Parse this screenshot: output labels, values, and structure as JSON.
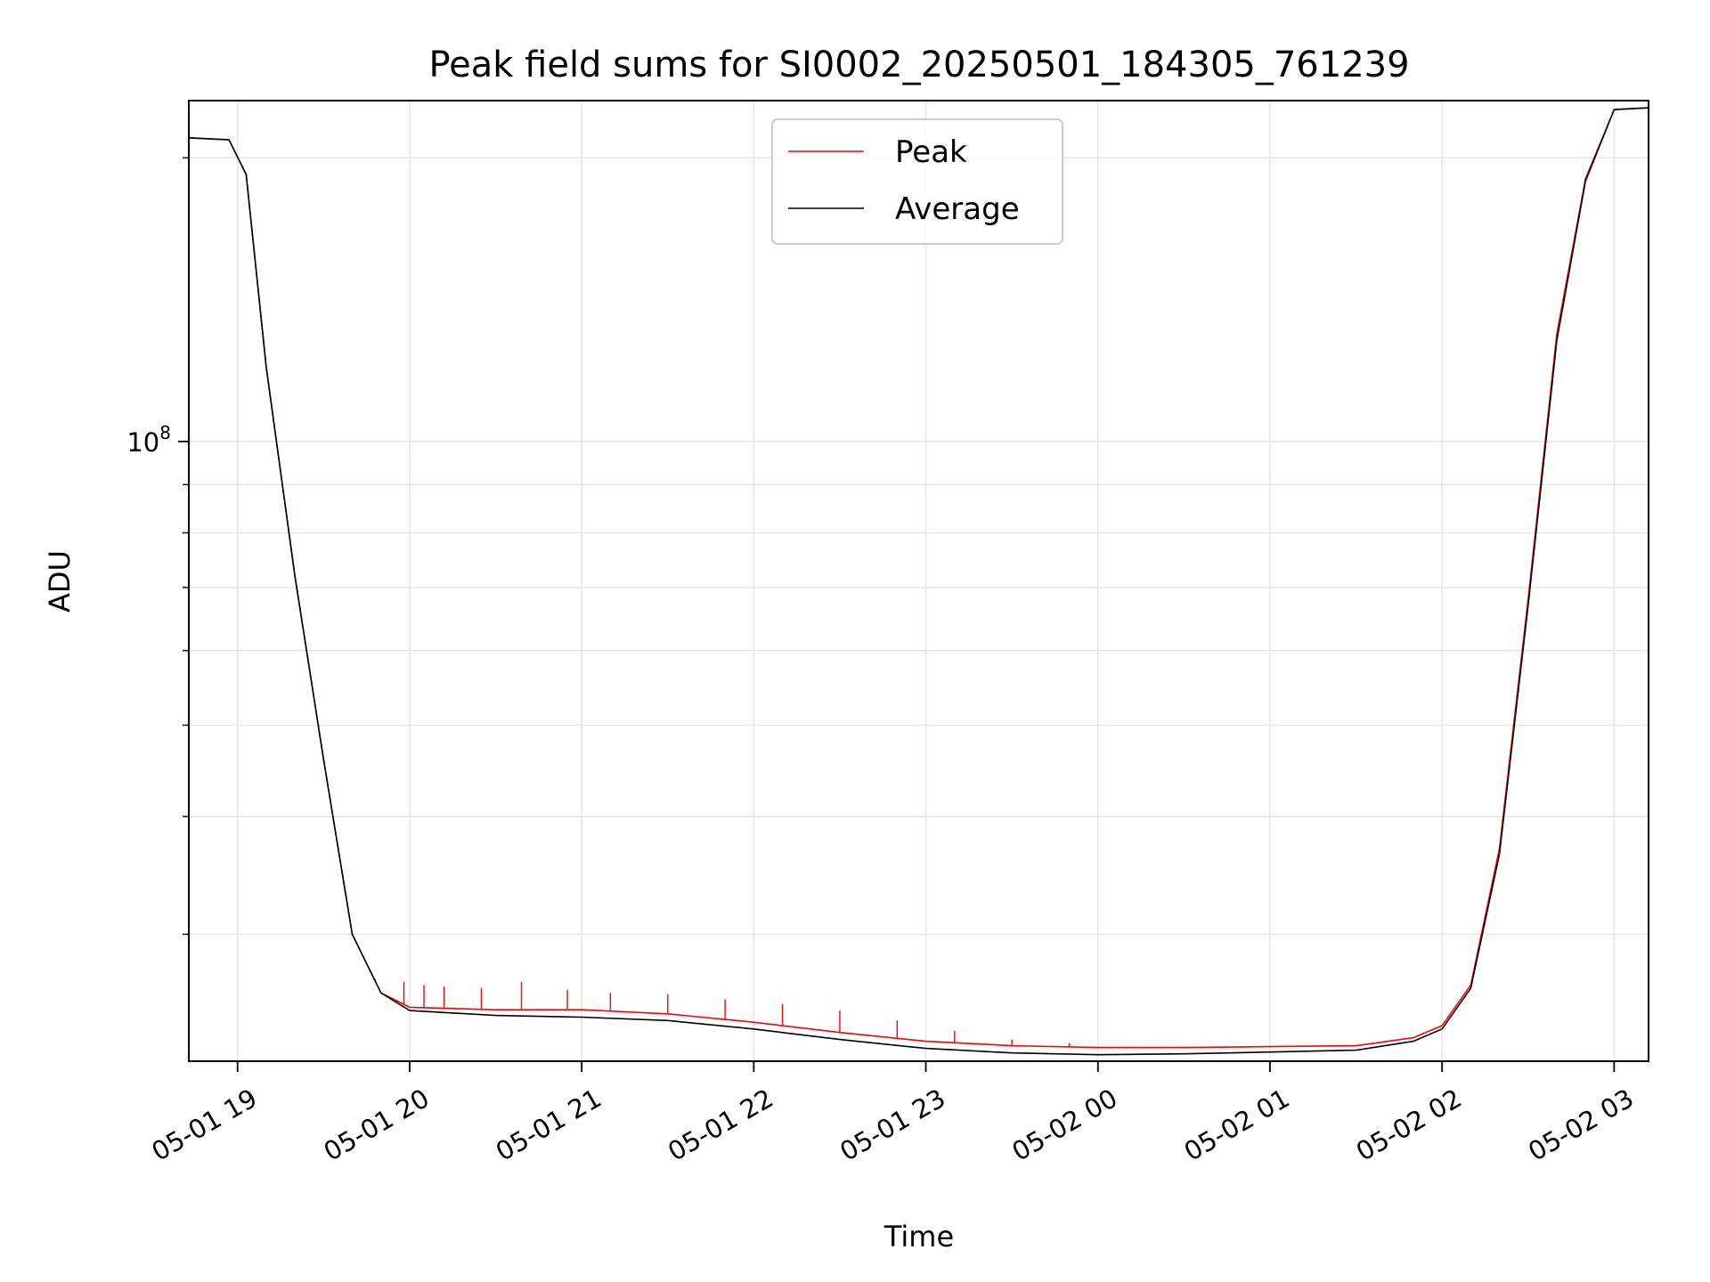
{
  "chart_data": {
    "type": "line",
    "title": "Peak field sums for SI0002_20250501_184305_761239",
    "xlabel": "Time",
    "ylabel": "ADU",
    "x_axis": "datetime",
    "xlim": [
      "2025-05-01T18:43",
      "2025-05-02T03:12"
    ],
    "y_scale": "log",
    "ylim": [
      22000000,
      230000000
    ],
    "y_major_ticks": [
      {
        "value": 100000000,
        "base": "10",
        "exp": "8"
      }
    ],
    "y_minor_ticks": [
      30000000,
      40000000,
      50000000,
      60000000,
      70000000,
      80000000,
      90000000,
      200000000
    ],
    "x_ticks": [
      {
        "t": "2025-05-01T19:00",
        "label": "05-01 19"
      },
      {
        "t": "2025-05-01T20:00",
        "label": "05-01 20"
      },
      {
        "t": "2025-05-01T21:00",
        "label": "05-01 21"
      },
      {
        "t": "2025-05-01T22:00",
        "label": "05-01 22"
      },
      {
        "t": "2025-05-01T23:00",
        "label": "05-01 23"
      },
      {
        "t": "2025-05-02T00:00",
        "label": "05-02 00"
      },
      {
        "t": "2025-05-02T01:00",
        "label": "05-02 01"
      },
      {
        "t": "2025-05-02T02:00",
        "label": "05-02 02"
      },
      {
        "t": "2025-05-02T03:00",
        "label": "05-02 03"
      }
    ],
    "grid": true,
    "legend": "upper-center",
    "series": [
      {
        "name": "Peak",
        "color": "#ff0000",
        "x": [
          "2025-05-01T18:43",
          "2025-05-01T18:57",
          "2025-05-01T19:03",
          "2025-05-01T19:10",
          "2025-05-01T19:20",
          "2025-05-01T19:30",
          "2025-05-01T19:40",
          "2025-05-01T19:50",
          "2025-05-01T20:00",
          "2025-05-01T20:30",
          "2025-05-01T21:00",
          "2025-05-01T21:30",
          "2025-05-01T22:00",
          "2025-05-01T22:30",
          "2025-05-01T23:00",
          "2025-05-01T23:30",
          "2025-05-02T00:00",
          "2025-05-02T00:30",
          "2025-05-02T01:00",
          "2025-05-02T01:30",
          "2025-05-02T01:50",
          "2025-05-02T02:00",
          "2025-05-02T02:10",
          "2025-05-02T02:20",
          "2025-05-02T02:30",
          "2025-05-02T02:40",
          "2025-05-02T02:50",
          "2025-05-02T03:00",
          "2025-05-02T03:12"
        ],
        "y": [
          210000000,
          209000000,
          192000000,
          120000000,
          72000000,
          46000000,
          30000000,
          26000000,
          25100000,
          24950000,
          24950000,
          24700000,
          24200000,
          23600000,
          23100000,
          22850000,
          22750000,
          22750000,
          22800000,
          22850000,
          23300000,
          24000000,
          26500000,
          37000000,
          68000000,
          130000000,
          190000000,
          225000000,
          226000000
        ],
        "spikes": [
          {
            "x": "2025-05-01T19:48",
            "y": 26900000
          },
          {
            "x": "2025-05-01T19:58",
            "y": 26700000
          },
          {
            "x": "2025-05-01T20:05",
            "y": 26500000
          },
          {
            "x": "2025-05-01T20:12",
            "y": 26400000
          },
          {
            "x": "2025-05-01T20:25",
            "y": 26300000
          },
          {
            "x": "2025-05-01T20:39",
            "y": 26700000
          },
          {
            "x": "2025-05-01T20:55",
            "y": 26200000
          },
          {
            "x": "2025-05-01T21:10",
            "y": 26000000
          },
          {
            "x": "2025-05-01T21:30",
            "y": 25900000
          },
          {
            "x": "2025-05-01T21:50",
            "y": 25600000
          },
          {
            "x": "2025-05-01T22:10",
            "y": 25300000
          },
          {
            "x": "2025-05-01T22:30",
            "y": 24900000
          },
          {
            "x": "2025-05-01T22:50",
            "y": 24300000
          },
          {
            "x": "2025-05-01T23:10",
            "y": 23700000
          },
          {
            "x": "2025-05-01T23:30",
            "y": 23200000
          },
          {
            "x": "2025-05-01T23:50",
            "y": 23000000
          }
        ]
      },
      {
        "name": "Average",
        "color": "#000000",
        "x": [
          "2025-05-01T18:43",
          "2025-05-01T18:57",
          "2025-05-01T19:03",
          "2025-05-01T19:10",
          "2025-05-01T19:20",
          "2025-05-01T19:30",
          "2025-05-01T19:40",
          "2025-05-01T19:50",
          "2025-05-01T20:00",
          "2025-05-01T20:30",
          "2025-05-01T21:00",
          "2025-05-01T21:30",
          "2025-05-01T22:00",
          "2025-05-01T22:30",
          "2025-05-01T23:00",
          "2025-05-01T23:30",
          "2025-05-02T00:00",
          "2025-05-02T00:30",
          "2025-05-02T01:00",
          "2025-05-02T01:30",
          "2025-05-02T01:50",
          "2025-05-02T02:00",
          "2025-05-02T02:10",
          "2025-05-02T02:20",
          "2025-05-02T02:30",
          "2025-05-02T02:40",
          "2025-05-02T02:50",
          "2025-05-02T03:00",
          "2025-05-02T03:12"
        ],
        "y": [
          210000000,
          209000000,
          192000000,
          120000000,
          72000000,
          46000000,
          30000000,
          26000000,
          24900000,
          24600000,
          24500000,
          24300000,
          23800000,
          23200000,
          22700000,
          22450000,
          22350000,
          22400000,
          22500000,
          22600000,
          23100000,
          23800000,
          26300000,
          36500000,
          67000000,
          128000000,
          189000000,
          225000000,
          226000000
        ]
      }
    ]
  }
}
